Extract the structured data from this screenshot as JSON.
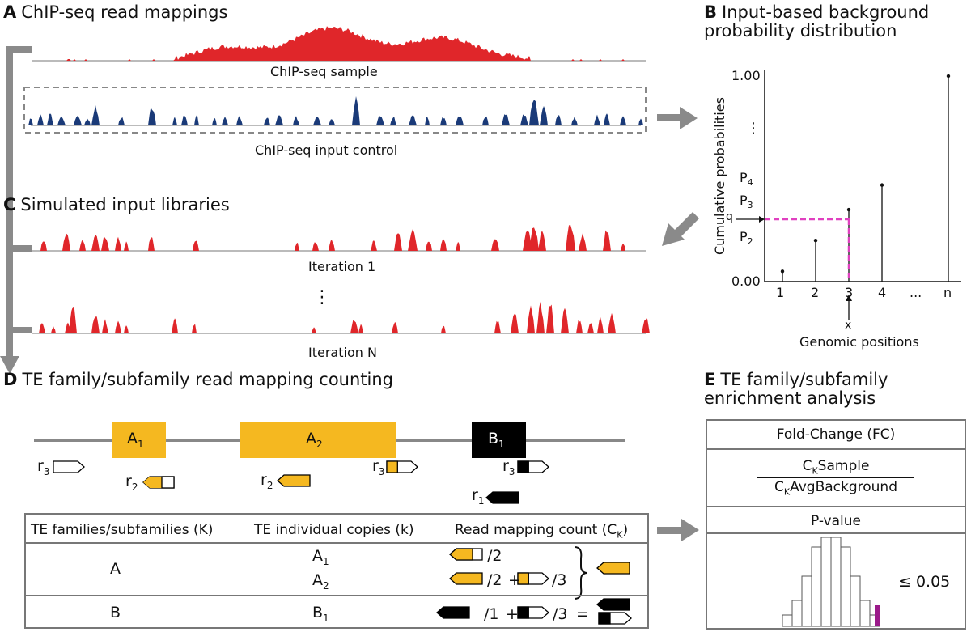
{
  "panel_a": {
    "letter": "A",
    "title": "ChIP-seq read mappings",
    "sample_label": "ChIP-seq sample",
    "input_label": "ChIP-seq input control"
  },
  "panel_b": {
    "letter": "B",
    "title_line1": "Input-based background",
    "title_line2": "probability distribution",
    "ylabel": "Cumulative probabilities",
    "xlabel": "Genomic positions",
    "ytick_top": "1.00",
    "ytick_bottom": "0.00",
    "ytick_dots": "⋮",
    "p_labels": [
      "P",
      "P",
      "P"
    ],
    "p_subs": [
      "4",
      "3",
      "2"
    ],
    "q_label": "q",
    "x_label_marker": "x",
    "xticks": [
      "1",
      "2",
      "3",
      "4",
      "...",
      "n"
    ],
    "chart_data": {
      "type": "scatter",
      "xlabel": "Genomic positions",
      "ylabel": "Cumulative probabilities",
      "x": [
        "1",
        "2",
        "3",
        "4",
        "n"
      ],
      "values": [
        0.05,
        0.2,
        0.35,
        0.47,
        1.0
      ],
      "ylim": [
        0,
        1
      ]
    },
    "colors": {
      "dashed": "#e040c0"
    }
  },
  "panel_c": {
    "letter": "C",
    "title": "Simulated input libraries",
    "iter1": "Iteration 1",
    "iterN": "Iteration N",
    "dots": "⋮"
  },
  "panel_d": {
    "letter": "D",
    "title": "TE family/subfamily read mapping counting",
    "elements": [
      {
        "name": "A",
        "sub": "1"
      },
      {
        "name": "A",
        "sub": "2"
      },
      {
        "name": "B",
        "sub": "1"
      }
    ],
    "reads": [
      {
        "name": "r",
        "sub": "3"
      },
      {
        "name": "r",
        "sub": "2"
      },
      {
        "name": "r",
        "sub": "2"
      },
      {
        "name": "r",
        "sub": "3"
      },
      {
        "name": "r",
        "sub": "3"
      },
      {
        "name": "r",
        "sub": "1"
      }
    ],
    "table": {
      "col1": "TE families/subfamilies (K)",
      "col2": "TE individual copies (k)",
      "col3_main": "Read mapping count (C",
      "col3_sub": "K",
      "col3_end": ")",
      "rows": [
        {
          "family": "A",
          "copies": [
            {
              "n": "A",
              "s": "1"
            },
            {
              "n": "A",
              "s": "2"
            }
          ],
          "counts": [
            "/2",
            "/2",
            "+",
            "/3"
          ]
        },
        {
          "family": "B",
          "copies": [
            {
              "n": "B",
              "s": "1"
            }
          ],
          "counts": [
            "/1",
            "+",
            "/3",
            "="
          ]
        }
      ]
    }
  },
  "panel_e": {
    "letter": "E",
    "title_line1": "TE family/subfamily",
    "title_line2": "enrichment analysis",
    "fc_header": "Fold-Change (FC)",
    "num_c": "C",
    "num_sub": "K",
    "num_text": "Sample",
    "den_c": "C",
    "den_sub": "K",
    "den_text": "AvgBackground",
    "pval_header": "P-value",
    "threshold": "≤ 0.05"
  },
  "colors": {
    "red": "#e0262a",
    "navy": "#1a3a78",
    "gold": "#f5b820",
    "gray": "#8a8a8a",
    "magenta": "#9b1b8a"
  }
}
